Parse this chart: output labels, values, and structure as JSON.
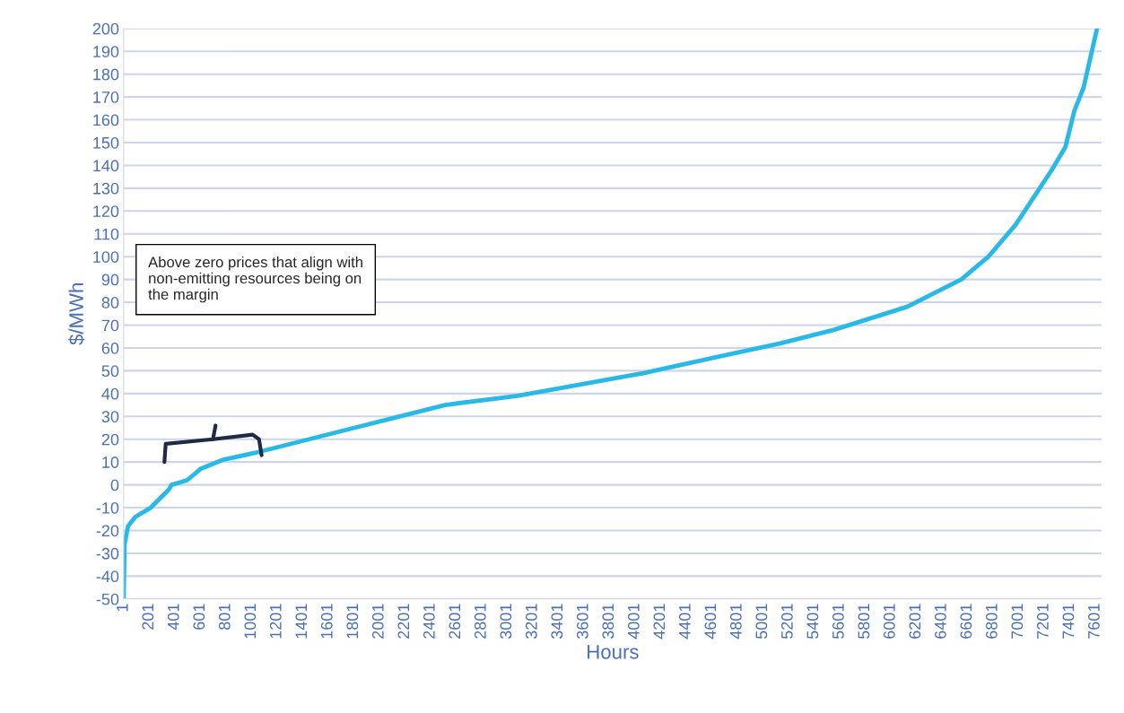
{
  "chart_data": {
    "type": "line",
    "xlabel": "Hours",
    "ylabel": "$/MWh",
    "annotations": [
      "Above zero prices that align with non-emitting resources being on the margin"
    ],
    "xlim": [
      1,
      7650
    ],
    "xticks": [
      1,
      201,
      401,
      601,
      801,
      1001,
      1201,
      1401,
      1601,
      1801,
      2001,
      2201,
      2401,
      2601,
      2801,
      3001,
      3201,
      3401,
      3601,
      3801,
      4001,
      4201,
      4401,
      4601,
      4801,
      5001,
      5201,
      5401,
      5601,
      5801,
      6001,
      6201,
      6401,
      6601,
      6801,
      7001,
      7201,
      7401,
      7601
    ],
    "ylim": [
      -50,
      200
    ],
    "yticks": [
      -50,
      -40,
      -30,
      -20,
      -10,
      0,
      10,
      20,
      30,
      40,
      50,
      60,
      70,
      80,
      90,
      100,
      110,
      120,
      130,
      140,
      150,
      160,
      170,
      180,
      190,
      200
    ],
    "grid": "y",
    "legend": false,
    "series": [
      {
        "color": "#29b9e8",
        "x": [
          1,
          8,
          36,
          93,
          213,
          355,
          376,
          497,
          603,
          780,
          1028,
          1382,
          1807,
          2090,
          2515,
          3082,
          3577,
          4073,
          4640,
          5136,
          5561,
          5844,
          6128,
          6340,
          6553,
          6765,
          6978,
          7119,
          7261,
          7367,
          7438,
          7509,
          7558,
          7615
        ],
        "values": [
          -50,
          -26,
          -18,
          -14,
          -10,
          -2,
          0,
          2,
          7,
          11,
          14,
          19,
          25,
          29,
          35,
          39,
          44,
          49,
          56,
          62,
          68,
          73,
          78,
          84,
          90,
          100,
          114,
          126,
          138,
          148,
          164,
          174,
          186,
          200
        ]
      }
    ]
  }
}
